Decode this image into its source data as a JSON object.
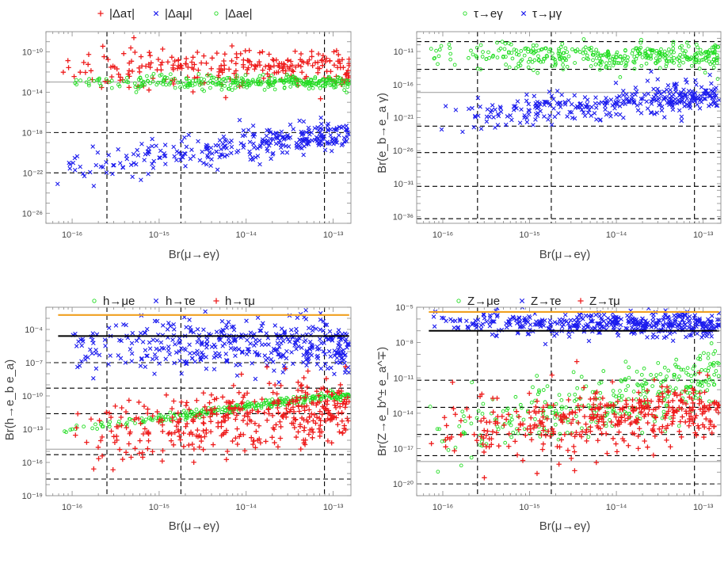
{
  "chart_data": [
    {
      "type": "scatter",
      "panel": "top-left",
      "xlabel": "Br(μ→eγ)",
      "ylabel": "",
      "xscale": "log",
      "yscale": "log",
      "xlim": [
        5e-17,
        1.6e-13
      ],
      "ylim": [
        1e-27,
        1e-08
      ],
      "xticks": [
        {
          "exp": -16,
          "label": "10⁻¹⁶"
        },
        {
          "exp": -15,
          "label": "10⁻¹⁵"
        },
        {
          "exp": -14,
          "label": "10⁻¹⁴"
        },
        {
          "exp": -13,
          "label": "10⁻¹³"
        }
      ],
      "yticks": [
        {
          "exp": -10,
          "label": "10⁻¹⁰"
        },
        {
          "exp": -14,
          "label": "10⁻¹⁴"
        },
        {
          "exp": -18,
          "label": "10⁻¹⁸"
        },
        {
          "exp": -22,
          "label": "10⁻²²"
        },
        {
          "exp": -26,
          "label": "10⁻²⁶"
        }
      ],
      "grid": "dashed reference lines",
      "legend_position": "top",
      "reference_lines": {
        "dashed_x_exp": [
          -15.6,
          -14.75,
          -13.1
        ],
        "dashed_y_exp": [
          -18,
          -22
        ],
        "solid_gray_y_exp": [
          -13
        ]
      },
      "series": [
        {
          "name": "|Δaτ|",
          "marker": "plus",
          "color": "#ee1c1c",
          "trend": {
            "x_exp": [
              -16,
              -15,
              -14,
              -13
            ],
            "y_exp": [
              -11.7,
              -11.5,
              -11.5,
              -11.5
            ]
          },
          "spread_exp": 0.9,
          "n_points": 260
        },
        {
          "name": "|Δaμ|",
          "marker": "cross",
          "color": "#1c1cee",
          "trend": {
            "x_exp": [
              -16,
              -15,
              -14,
              -13
            ],
            "y_exp": [
              -21.4,
              -20.3,
              -19.2,
              -18.3
            ]
          },
          "spread_exp": 0.8,
          "n_points": 300
        },
        {
          "name": "|Δae|",
          "marker": "circle",
          "color": "#22dd22",
          "trend": {
            "x_exp": [
              -16,
              -15,
              -14,
              -13
            ],
            "y_exp": [
              -13.0,
              -13.0,
              -13.0,
              -13.0
            ]
          },
          "spread_exp": 0.35,
          "n_points": 320
        }
      ]
    },
    {
      "type": "scatter",
      "panel": "top-right",
      "xlabel": "Br(μ→eγ)",
      "ylabel": "Br(e_b→e_a γ)",
      "xscale": "log",
      "yscale": "log",
      "xlim": [
        5e-17,
        1.6e-13
      ],
      "ylim": [
        1e-37,
        1e-08
      ],
      "xticks": [
        {
          "exp": -16,
          "label": "10⁻¹⁶"
        },
        {
          "exp": -15,
          "label": "10⁻¹⁵"
        },
        {
          "exp": -14,
          "label": "10⁻¹⁴"
        },
        {
          "exp": -13,
          "label": "10⁻¹³"
        }
      ],
      "yticks": [
        {
          "exp": -11,
          "label": "10⁻¹¹"
        },
        {
          "exp": -16,
          "label": "10⁻¹⁶"
        },
        {
          "exp": -21,
          "label": "10⁻²¹"
        },
        {
          "exp": -26,
          "label": "10⁻²⁶"
        },
        {
          "exp": -31,
          "label": "10⁻³¹"
        },
        {
          "exp": -36,
          "label": "10⁻³⁶"
        }
      ],
      "grid": "dashed reference lines",
      "legend_position": "top",
      "reference_lines": {
        "dashed_x_exp": [
          -15.6,
          -14.75,
          -13.1
        ],
        "dashed_y_exp": [
          -9.5,
          -13.7,
          -22.3,
          -26.3,
          -31.4,
          -36.3
        ],
        "solid_gray_y_exp": [
          -17.2
        ]
      },
      "series": [
        {
          "name": "τ→eγ",
          "marker": "circle",
          "color": "#22dd22",
          "trend": {
            "x_exp": [
              -16,
              -15,
              -14,
              -13
            ],
            "y_exp": [
              -11.6,
              -11.6,
              -11.6,
              -11.6
            ]
          },
          "spread_exp": 1.0,
          "n_points": 380
        },
        {
          "name": "τ→μγ",
          "marker": "cross",
          "color": "#1c1cee",
          "trend": {
            "x_exp": [
              -16,
              -15,
              -14,
              -13
            ],
            "y_exp": [
              -21.0,
              -20.0,
              -18.8,
              -17.8
            ]
          },
          "spread_exp": 1.2,
          "n_points": 340
        }
      ]
    },
    {
      "type": "scatter",
      "panel": "bottom-left",
      "xlabel": "Br(μ→eγ)",
      "ylabel": "Br(h→e_b e_a)",
      "xscale": "log",
      "yscale": "log",
      "xlim": [
        5e-17,
        1.6e-13
      ],
      "ylim": [
        1e-19,
        0.01
      ],
      "xticks": [
        {
          "exp": -16,
          "label": "10⁻¹⁶"
        },
        {
          "exp": -15,
          "label": "10⁻¹⁵"
        },
        {
          "exp": -14,
          "label": "10⁻¹⁴"
        },
        {
          "exp": -13,
          "label": "10⁻¹³"
        }
      ],
      "yticks": [
        {
          "exp": -4,
          "label": "10⁻⁴"
        },
        {
          "exp": -7,
          "label": "10⁻⁷"
        },
        {
          "exp": -10,
          "label": "10⁻¹⁰"
        },
        {
          "exp": -13,
          "label": "10⁻¹³"
        },
        {
          "exp": -16,
          "label": "10⁻¹⁶"
        },
        {
          "exp": -19,
          "label": "10⁻¹⁹"
        }
      ],
      "grid": "dashed reference lines",
      "legend_position": "top",
      "reference_lines": {
        "dashed_x_exp": [
          -15.6,
          -14.75,
          -13.1
        ],
        "dashed_y_exp": [
          -7,
          -9.3,
          -11.6,
          -15.3,
          -17.5
        ],
        "solid_gray_y_exp": [
          -14.8
        ],
        "orange_limit_y_exp": -2.7,
        "black_limit_y_exp": -4.6
      },
      "series": [
        {
          "name": "h→μe",
          "marker": "circle",
          "color": "#22dd22",
          "trend": {
            "x_exp": [
              -16,
              -15,
              -14,
              -13
            ],
            "y_exp": [
              -13.0,
              -12.0,
              -11.0,
              -10.0
            ]
          },
          "spread_exp": 0.2,
          "n_points": 300
        },
        {
          "name": "h→τe",
          "marker": "cross",
          "color": "#1c1cee",
          "trend": {
            "x_exp": [
              -16,
              -15,
              -14,
              -13
            ],
            "y_exp": [
              -5.3,
              -5.3,
              -5.3,
              -5.5
            ]
          },
          "spread_exp": 1.2,
          "n_points": 420
        },
        {
          "name": "h→τμ",
          "marker": "plus",
          "color": "#ee1c1c",
          "trend": {
            "x_exp": [
              -16,
              -15,
              -14,
              -13
            ],
            "y_exp": [
              -13.8,
              -12.8,
              -12.0,
              -11.5
            ]
          },
          "spread_exp": 1.5,
          "n_points": 400
        }
      ]
    },
    {
      "type": "scatter",
      "panel": "bottom-right",
      "xlabel": "Br(μ→eγ)",
      "ylabel": "Br(Z→e_b^± e_a^∓)",
      "xscale": "log",
      "yscale": "log",
      "xlim": [
        5e-17,
        1.6e-13
      ],
      "ylim": [
        1e-21,
        1e-05
      ],
      "xticks": [
        {
          "exp": -16,
          "label": "10⁻¹⁶"
        },
        {
          "exp": -15,
          "label": "10⁻¹⁵"
        },
        {
          "exp": -14,
          "label": "10⁻¹⁴"
        },
        {
          "exp": -13,
          "label": "10⁻¹³"
        }
      ],
      "yticks": [
        {
          "exp": -5,
          "label": "10⁻⁵"
        },
        {
          "exp": -8,
          "label": "10⁻⁸"
        },
        {
          "exp": -11,
          "label": "10⁻¹¹"
        },
        {
          "exp": -14,
          "label": "10⁻¹⁴"
        },
        {
          "exp": -17,
          "label": "10⁻¹⁷"
        },
        {
          "exp": -20,
          "label": "10⁻²⁰"
        }
      ],
      "grid": "dashed reference lines",
      "legend_position": "top",
      "reference_lines": {
        "dashed_x_exp": [
          -15.6,
          -14.75,
          -13.1
        ],
        "dashed_y_exp": [
          -11.2,
          -13.5,
          -15.8,
          -17.6,
          -20.0
        ],
        "solid_gray_y_exp": [
          -18.1
        ],
        "orange_limit_y_exp": -5.4,
        "black_limit_y_exp": -7.0
      },
      "series": [
        {
          "name": "Z→μe",
          "marker": "circle",
          "color": "#22dd22",
          "trend": {
            "x_exp": [
              -16,
              -15,
              -14,
              -13
            ],
            "y_exp": [
              -15.5,
              -14.0,
              -12.8,
              -11.3
            ]
          },
          "spread_exp": 1.4,
          "n_points": 340
        },
        {
          "name": "Z→τe",
          "marker": "cross",
          "color": "#1c1cee",
          "trend": {
            "x_exp": [
              -16,
              -15,
              -14,
              -13
            ],
            "y_exp": [
              -6.3,
              -6.4,
              -6.4,
              -6.5
            ]
          },
          "spread_exp": 0.5,
          "n_points": 440
        },
        {
          "name": "Z→τμ",
          "marker": "plus",
          "color": "#ee1c1c",
          "trend": {
            "x_exp": [
              -16,
              -15,
              -14,
              -13
            ],
            "y_exp": [
              -15.6,
              -15.0,
              -14.4,
              -13.6
            ]
          },
          "spread_exp": 1.4,
          "n_points": 400
        }
      ]
    }
  ]
}
